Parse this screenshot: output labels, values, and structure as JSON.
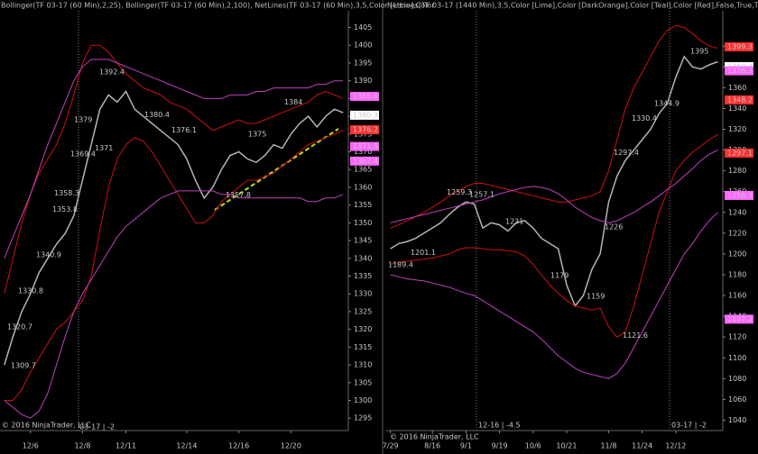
{
  "chart_data": [
    {
      "type": "line",
      "title": "Bollinger(TF 03-17 (60 Min),2,25), Bollinger(TF 03-17 (60 Min),2,100), NetLines(TF 03-17 (60 Min),3,5,Color [Lime],Color",
      "categories": [
        null,
        null,
        null,
        "12/6",
        null,
        null,
        null,
        null,
        null,
        "12/8",
        null,
        null,
        null,
        null,
        "12/11",
        null,
        null,
        null,
        null,
        null,
        null,
        "12/14",
        null,
        null,
        null,
        null,
        null,
        "12/16",
        null,
        null,
        null,
        null,
        null,
        "12/20",
        null,
        null,
        null,
        null,
        null,
        null
      ],
      "series": [
        {
          "color": "#b4b4b4",
          "values": [
            1310,
            1318,
            1325,
            1330,
            1336,
            1340,
            1344,
            1347,
            1352,
            1362,
            1372,
            1382,
            1386,
            1384,
            1387,
            1382,
            1380,
            1378,
            1376,
            1374,
            1372,
            1368,
            1362,
            1357,
            1360,
            1365,
            1369,
            1370,
            1368,
            1367,
            1369,
            1372,
            1371,
            1375,
            1378,
            1380,
            1377,
            1380,
            1382,
            1381
          ]
        },
        {
          "color": "#d01010",
          "values": [
            1330,
            1340,
            1350,
            1358,
            1364,
            1368,
            1372,
            1378,
            1386,
            1395,
            1400,
            1400,
            1398,
            1395,
            1392,
            1390,
            1388,
            1387,
            1386,
            1384,
            1383,
            1382,
            1380,
            1378,
            1376,
            1377,
            1378,
            1379,
            1378,
            1378,
            1379,
            1380,
            1381,
            1382,
            1383,
            1384,
            1386,
            1387,
            1386,
            1385
          ]
        },
        {
          "color": "#d01010",
          "values": [
            1300,
            1300,
            1303,
            1308,
            1312,
            1316,
            1320,
            1322,
            1325,
            1328,
            1335,
            1348,
            1360,
            1368,
            1372,
            1374,
            1373,
            1370,
            1366,
            1362,
            1358,
            1354,
            1350,
            1350,
            1352,
            1356,
            1358,
            1360,
            1362,
            1362,
            1363,
            1364,
            1366,
            1368,
            1370,
            1372,
            1373,
            1374,
            1375,
            1376
          ]
        },
        {
          "color": "#c040c0",
          "values": [
            1340,
            1346,
            1352,
            1358,
            1365,
            1372,
            1378,
            1384,
            1390,
            1394,
            1396,
            1396,
            1396,
            1395,
            1394,
            1393,
            1392,
            1391,
            1390,
            1389,
            1388,
            1387,
            1386,
            1385,
            1385,
            1385,
            1386,
            1386,
            1386,
            1387,
            1387,
            1388,
            1388,
            1388,
            1388,
            1388,
            1389,
            1389,
            1390,
            1390
          ]
        },
        {
          "color": "#c040c0",
          "values": [
            1300,
            1298,
            1296,
            1295,
            1297,
            1302,
            1310,
            1318,
            1325,
            1330,
            1334,
            1338,
            1342,
            1346,
            1349,
            1351,
            1353,
            1355,
            1357,
            1358,
            1359,
            1359,
            1359,
            1359,
            1359,
            1358,
            1358,
            1357,
            1357,
            1357,
            1357,
            1357,
            1357,
            1357,
            1357,
            1356,
            1356,
            1357,
            1357,
            1358
          ]
        }
      ],
      "ylim": [
        1291.5,
        1409.7
      ],
      "yticks": [
        1295,
        1300,
        1305,
        1310,
        1315,
        1320,
        1325,
        1330,
        1335,
        1340,
        1345,
        1350,
        1355,
        1360,
        1365,
        1370,
        1375,
        1380,
        1385,
        1390,
        1395,
        1400,
        1405
      ],
      "markers": [
        {
          "value": 1385.6,
          "color": "#ff66ff"
        },
        {
          "value": 1380.3,
          "color": "#ffffff"
        },
        {
          "value": 1376.2,
          "color": "#ff3030"
        },
        {
          "value": 1371.5,
          "color": "#ff66ff"
        },
        {
          "value": 1367.4,
          "color": "#ff66ff"
        }
      ],
      "annotations": [
        {
          "value": 1309.7,
          "color": "#ff5050"
        },
        {
          "value": 1320.7,
          "color": "#ff5050"
        },
        {
          "value": 1330.8,
          "color": "#ff5050"
        },
        {
          "value": 1340.9,
          "color": "#40c0c0"
        },
        {
          "value": 1353.8,
          "color": "#ff5050"
        },
        {
          "value": 1358.3,
          "color": "#ff5050"
        },
        {
          "value": 1369.4,
          "color": "#ff5050"
        },
        {
          "value": 1371,
          "color": "#ff5050"
        },
        {
          "value": 1379,
          "color": "#ff5050"
        },
        {
          "value": 1392.4,
          "color": "#40c0c0"
        },
        {
          "value": 1380.4,
          "color": "#40c0c0"
        },
        {
          "value": 1376.1,
          "color": "#40c0c0"
        },
        {
          "value": 1357.8,
          "color": "#ff5050"
        },
        {
          "value": 1375,
          "color": "#40c0c0"
        },
        {
          "value": 1384,
          "color": "#80ff40"
        }
      ],
      "notes": [
        "© 2016 NinjaTrader, LLC",
        "03-17 | -2"
      ]
    },
    {
      "type": "line",
      "title": "NetLines(TF 03-17 (1440 Min),3,5,Color [Lime],Color [DarkOrange],Color [Teal],Color [Red],False,True,True), Bollin",
      "categories": [
        "7/29",
        null,
        null,
        null,
        null,
        "8/16",
        null,
        null,
        null,
        "9/1",
        null,
        null,
        null,
        "9/19",
        null,
        null,
        null,
        "10/6",
        null,
        null,
        null,
        "10/21",
        null,
        null,
        null,
        null,
        "11/8",
        null,
        null,
        null,
        "11/24",
        null,
        null,
        null,
        "12/12",
        null,
        null,
        null,
        null,
        null
      ],
      "series": [
        {
          "color": "#b4b4b4",
          "values": [
            1205,
            1210,
            1212,
            1215,
            1220,
            1225,
            1230,
            1238,
            1245,
            1250,
            1248,
            1225,
            1230,
            1228,
            1222,
            1230,
            1232,
            1225,
            1215,
            1210,
            1205,
            1170,
            1150,
            1160,
            1185,
            1200,
            1250,
            1275,
            1290,
            1300,
            1310,
            1320,
            1335,
            1345,
            1370,
            1390,
            1380,
            1378,
            1382,
            1385
          ]
        },
        {
          "color": "#d01010",
          "values": [
            1225,
            1228,
            1232,
            1236,
            1240,
            1245,
            1250,
            1256,
            1260,
            1265,
            1268,
            1268,
            1266,
            1264,
            1262,
            1260,
            1258,
            1256,
            1254,
            1252,
            1250,
            1250,
            1252,
            1254,
            1256,
            1260,
            1280,
            1310,
            1340,
            1360,
            1375,
            1390,
            1405,
            1415,
            1420,
            1418,
            1412,
            1405,
            1400,
            1398
          ]
        },
        {
          "color": "#d01010",
          "values": [
            1190,
            1192,
            1193,
            1194,
            1195,
            1196,
            1198,
            1200,
            1204,
            1206,
            1206,
            1205,
            1204,
            1204,
            1203,
            1202,
            1198,
            1190,
            1180,
            1170,
            1162,
            1155,
            1150,
            1148,
            1146,
            1148,
            1130,
            1120,
            1125,
            1150,
            1180,
            1210,
            1240,
            1260,
            1280,
            1290,
            1298,
            1304,
            1310,
            1315
          ]
        },
        {
          "color": "#c040c0",
          "values": [
            1230,
            1232,
            1234,
            1236,
            1238,
            1240,
            1242,
            1244,
            1246,
            1248,
            1250,
            1252,
            1255,
            1258,
            1260,
            1262,
            1264,
            1265,
            1264,
            1262,
            1258,
            1252,
            1245,
            1240,
            1235,
            1232,
            1230,
            1232,
            1236,
            1240,
            1245,
            1250,
            1256,
            1262,
            1268,
            1275,
            1282,
            1290,
            1296,
            1300
          ]
        },
        {
          "color": "#c040c0",
          "values": [
            1180,
            1178,
            1176,
            1175,
            1174,
            1172,
            1170,
            1168,
            1165,
            1162,
            1160,
            1155,
            1150,
            1145,
            1140,
            1135,
            1130,
            1125,
            1118,
            1110,
            1102,
            1096,
            1090,
            1086,
            1084,
            1082,
            1080,
            1085,
            1095,
            1110,
            1125,
            1140,
            1155,
            1170,
            1185,
            1200,
            1210,
            1222,
            1232,
            1240
          ]
        }
      ],
      "ylim": [
        1030,
        1434
      ],
      "yticks": [
        1040,
        1060,
        1080,
        1100,
        1120,
        1140,
        1160,
        1180,
        1200,
        1220,
        1240,
        1260,
        1280,
        1300,
        1320,
        1340,
        1360,
        1380,
        1400
      ],
      "markers": [
        {
          "value": 1399.3,
          "color": "#ff3030"
        },
        {
          "value": 1380.3,
          "color": "#ffffff"
        },
        {
          "value": 1376.3,
          "color": "#ff66ff"
        },
        {
          "value": 1348.2,
          "color": "#ff3030"
        },
        {
          "value": 1297.1,
          "color": "#ff3030"
        },
        {
          "value": 1256.3,
          "color": "#ff66ff"
        },
        {
          "value": 1137.2,
          "color": "#ff66ff"
        }
      ],
      "annotations": [
        {
          "value": 1189.4,
          "color": "#ff5050"
        },
        {
          "value": 1201.1,
          "color": "#ff5050"
        },
        {
          "value": 1259.3,
          "color": "#40c0c0"
        },
        {
          "value": 1257.1,
          "color": "#40c0c0"
        },
        {
          "value": 1231,
          "color": "#ff5050"
        },
        {
          "value": 1179,
          "color": "#ff5050"
        },
        {
          "value": 1159,
          "color": "#ff5050"
        },
        {
          "value": 1121.6,
          "color": "#ff5050"
        },
        {
          "value": 1226,
          "color": "#ff5050"
        },
        {
          "value": 1297.4,
          "color": "#ff5050"
        },
        {
          "value": 1330.4,
          "color": "#ff5050"
        },
        {
          "value": 1344.9,
          "color": "#ff5050"
        },
        {
          "value": 1395,
          "color": "#80ff40"
        }
      ],
      "notes": [
        "© 2016 NinjaTrader, LLC",
        "12-16 | -4.5",
        "03-17 | -2"
      ]
    }
  ]
}
